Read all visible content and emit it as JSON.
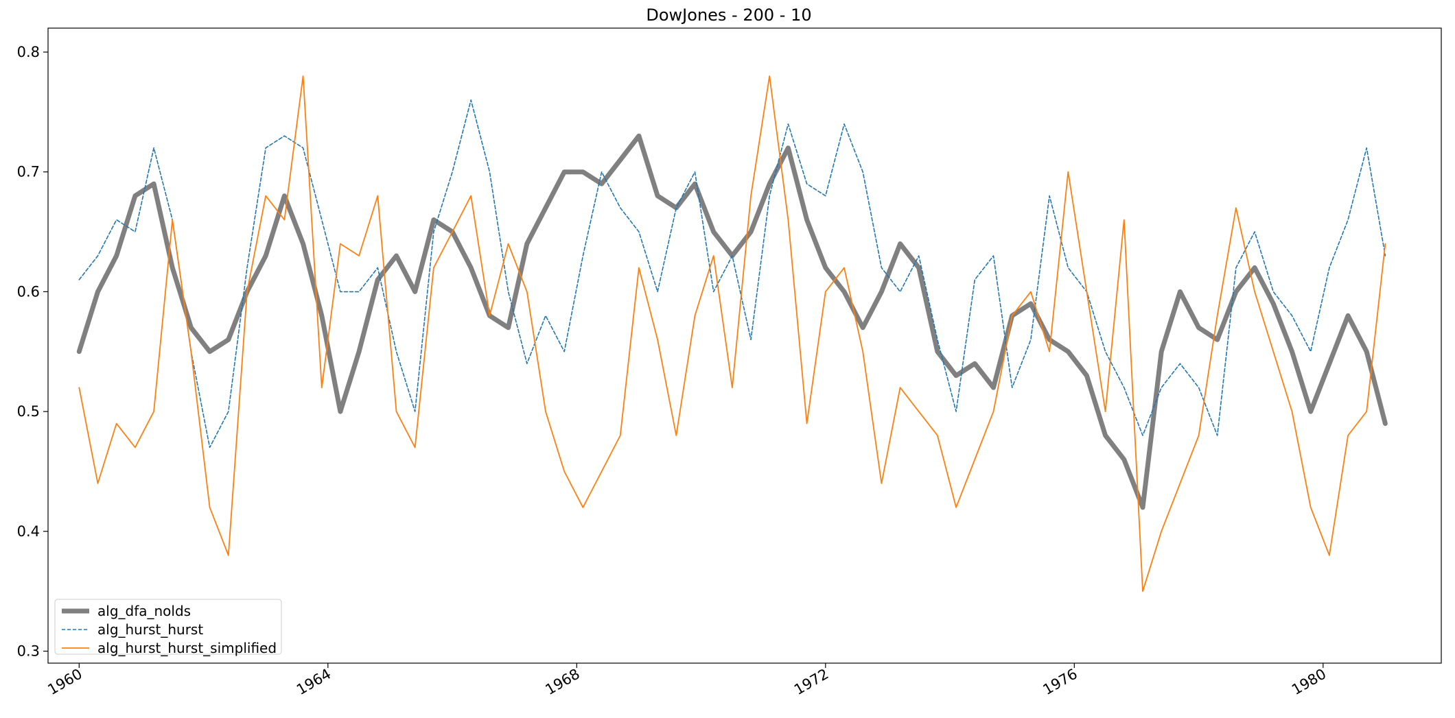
{
  "chart_data": {
    "type": "line",
    "title": "DowJones - 200 - 10",
    "xlabel": "",
    "ylabel": "",
    "xlim": [
      1959.5,
      1981.9
    ],
    "ylim": [
      0.29,
      0.82
    ],
    "xticks": [
      1960,
      1964,
      1968,
      1972,
      1976,
      1980
    ],
    "xtick_labels": [
      "1960",
      "1964",
      "1968",
      "1972",
      "1976",
      "1980"
    ],
    "yticks": [
      0.3,
      0.4,
      0.5,
      0.6,
      0.7,
      0.8
    ],
    "ytick_labels": [
      "0.3",
      "0.4",
      "0.5",
      "0.6",
      "0.7",
      "0.8"
    ],
    "grid": false,
    "legend_position": "lower-left",
    "x": [
      1960.0,
      1960.3,
      1960.6,
      1960.9,
      1961.2,
      1961.5,
      1961.8,
      1962.1,
      1962.4,
      1962.7,
      1963.0,
      1963.3,
      1963.6,
      1963.9,
      1964.2,
      1964.5,
      1964.8,
      1965.1,
      1965.4,
      1965.7,
      1966.0,
      1966.3,
      1966.6,
      1966.9,
      1967.2,
      1967.5,
      1967.8,
      1968.1,
      1968.4,
      1968.7,
      1969.0,
      1969.3,
      1969.6,
      1969.9,
      1970.2,
      1970.5,
      1970.8,
      1971.1,
      1971.4,
      1971.7,
      1972.0,
      1972.3,
      1972.6,
      1972.9,
      1973.2,
      1973.5,
      1973.8,
      1974.1,
      1974.4,
      1974.7,
      1975.0,
      1975.3,
      1975.6,
      1975.9,
      1976.2,
      1976.5,
      1976.8,
      1977.1,
      1977.4,
      1977.7,
      1978.0,
      1978.3,
      1978.6,
      1978.9,
      1979.2,
      1979.5,
      1979.8,
      1980.1,
      1980.4,
      1980.7,
      1981.0
    ],
    "series": [
      {
        "name": "alg_dfa_nolds",
        "color": "#808080",
        "style": "thick",
        "values": [
          0.55,
          0.6,
          0.63,
          0.68,
          0.69,
          0.62,
          0.57,
          0.55,
          0.56,
          0.6,
          0.63,
          0.68,
          0.64,
          0.58,
          0.5,
          0.55,
          0.61,
          0.63,
          0.6,
          0.66,
          0.65,
          0.62,
          0.58,
          0.57,
          0.64,
          0.67,
          0.7,
          0.7,
          0.69,
          0.71,
          0.73,
          0.68,
          0.67,
          0.69,
          0.65,
          0.63,
          0.65,
          0.69,
          0.72,
          0.66,
          0.62,
          0.6,
          0.57,
          0.6,
          0.64,
          0.62,
          0.55,
          0.53,
          0.54,
          0.52,
          0.58,
          0.59,
          0.56,
          0.55,
          0.53,
          0.48,
          0.46,
          0.42,
          0.55,
          0.6,
          0.57,
          0.56,
          0.6,
          0.62,
          0.59,
          0.55,
          0.5,
          0.54,
          0.58,
          0.55,
          0.49
        ]
      },
      {
        "name": "alg_hurst_hurst",
        "color": "#1f77b4",
        "style": "dashed",
        "values": [
          0.61,
          0.63,
          0.66,
          0.65,
          0.72,
          0.66,
          0.55,
          0.47,
          0.5,
          0.62,
          0.72,
          0.73,
          0.72,
          0.66,
          0.6,
          0.6,
          0.62,
          0.55,
          0.5,
          0.65,
          0.7,
          0.76,
          0.7,
          0.6,
          0.54,
          0.58,
          0.55,
          0.63,
          0.7,
          0.67,
          0.65,
          0.6,
          0.67,
          0.7,
          0.6,
          0.63,
          0.56,
          0.68,
          0.74,
          0.69,
          0.68,
          0.74,
          0.7,
          0.62,
          0.6,
          0.63,
          0.56,
          0.5,
          0.61,
          0.63,
          0.52,
          0.56,
          0.68,
          0.62,
          0.6,
          0.55,
          0.52,
          0.48,
          0.52,
          0.54,
          0.52,
          0.48,
          0.62,
          0.65,
          0.6,
          0.58,
          0.55,
          0.62,
          0.66,
          0.72,
          0.63
        ]
      },
      {
        "name": "alg_hurst_hurst_simplified",
        "color": "#ff7f0e",
        "style": "thin",
        "values": [
          0.52,
          0.44,
          0.49,
          0.47,
          0.5,
          0.66,
          0.55,
          0.42,
          0.38,
          0.6,
          0.68,
          0.66,
          0.78,
          0.52,
          0.64,
          0.63,
          0.68,
          0.5,
          0.47,
          0.62,
          0.65,
          0.68,
          0.58,
          0.64,
          0.6,
          0.5,
          0.45,
          0.42,
          0.45,
          0.48,
          0.62,
          0.56,
          0.48,
          0.58,
          0.63,
          0.52,
          0.68,
          0.78,
          0.66,
          0.49,
          0.6,
          0.62,
          0.55,
          0.44,
          0.52,
          0.5,
          0.48,
          0.42,
          0.46,
          0.5,
          0.58,
          0.6,
          0.55,
          0.7,
          0.6,
          0.5,
          0.66,
          0.35,
          0.4,
          0.44,
          0.48,
          0.58,
          0.67,
          0.6,
          0.55,
          0.5,
          0.42,
          0.38,
          0.48,
          0.5,
          0.64
        ]
      }
    ]
  }
}
